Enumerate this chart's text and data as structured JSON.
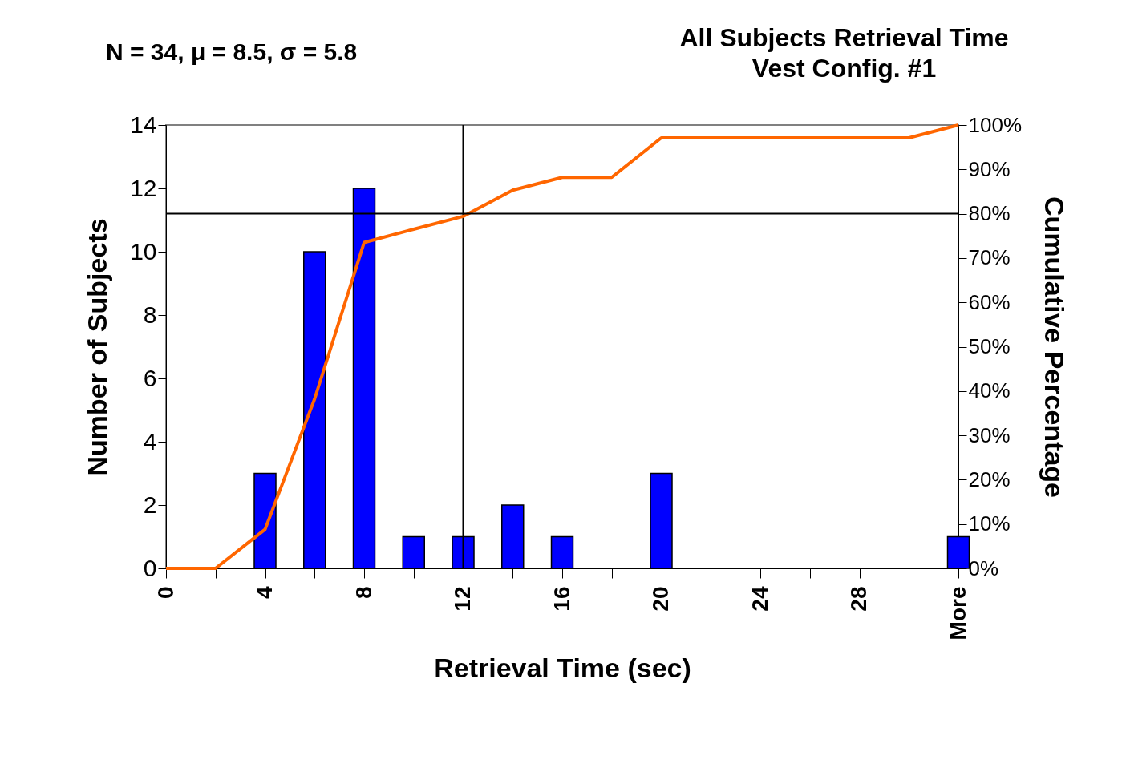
{
  "chart_data": {
    "type": "bar",
    "title": "All Subjects Retrieval Time",
    "subtitle": "Vest Config. #1",
    "xlabel": "Retrieval Time (sec)",
    "ylabel": "Number of Subjects",
    "y2label": "Cumulative Percentage",
    "annotations": [
      "N = 34, μ = 8.5, σ = 5.8"
    ],
    "categories": [
      "0",
      null,
      "4",
      null,
      "8",
      null,
      "12",
      null,
      "16",
      null,
      "20",
      null,
      "24",
      null,
      "28",
      null,
      "More"
    ],
    "series": [
      {
        "color": "#0000ff",
        "values": [
          0,
          0,
          3,
          10,
          12,
          1,
          1,
          2,
          1,
          0,
          3,
          0,
          0,
          0,
          0,
          0,
          1
        ]
      },
      {
        "type": "line",
        "axis": "y2",
        "color": "#ff6600",
        "values": [
          0,
          0,
          8.8,
          38.2,
          73.5,
          76.5,
          79.4,
          85.3,
          88.2,
          88.2,
          97.1,
          97.1,
          97.1,
          97.1,
          97.1,
          97.1,
          100
        ]
      }
    ],
    "ylim": [
      0,
      14
    ],
    "yticks": [
      0,
      2,
      4,
      6,
      8,
      10,
      12,
      14
    ],
    "y2lim": [
      0,
      100
    ],
    "y2ticks": [
      {
        "value": 0,
        "label": "0%"
      },
      {
        "value": 10,
        "label": "10%"
      },
      {
        "value": 20,
        "label": "20%"
      },
      {
        "value": 30,
        "label": "30%"
      },
      {
        "value": 40,
        "label": "40%"
      },
      {
        "value": 50,
        "label": "50%"
      },
      {
        "value": 60,
        "label": "60%"
      },
      {
        "value": 70,
        "label": "70%"
      },
      {
        "value": 80,
        "label": "80%"
      },
      {
        "value": 90,
        "label": "90%"
      },
      {
        "value": 100,
        "label": "100%"
      }
    ],
    "ref_lines": [
      {
        "axis": "x",
        "value": "12",
        "color": "#000000"
      },
      {
        "axis": "y2",
        "value": 80,
        "color": "#000000"
      }
    ],
    "grid": false
  }
}
